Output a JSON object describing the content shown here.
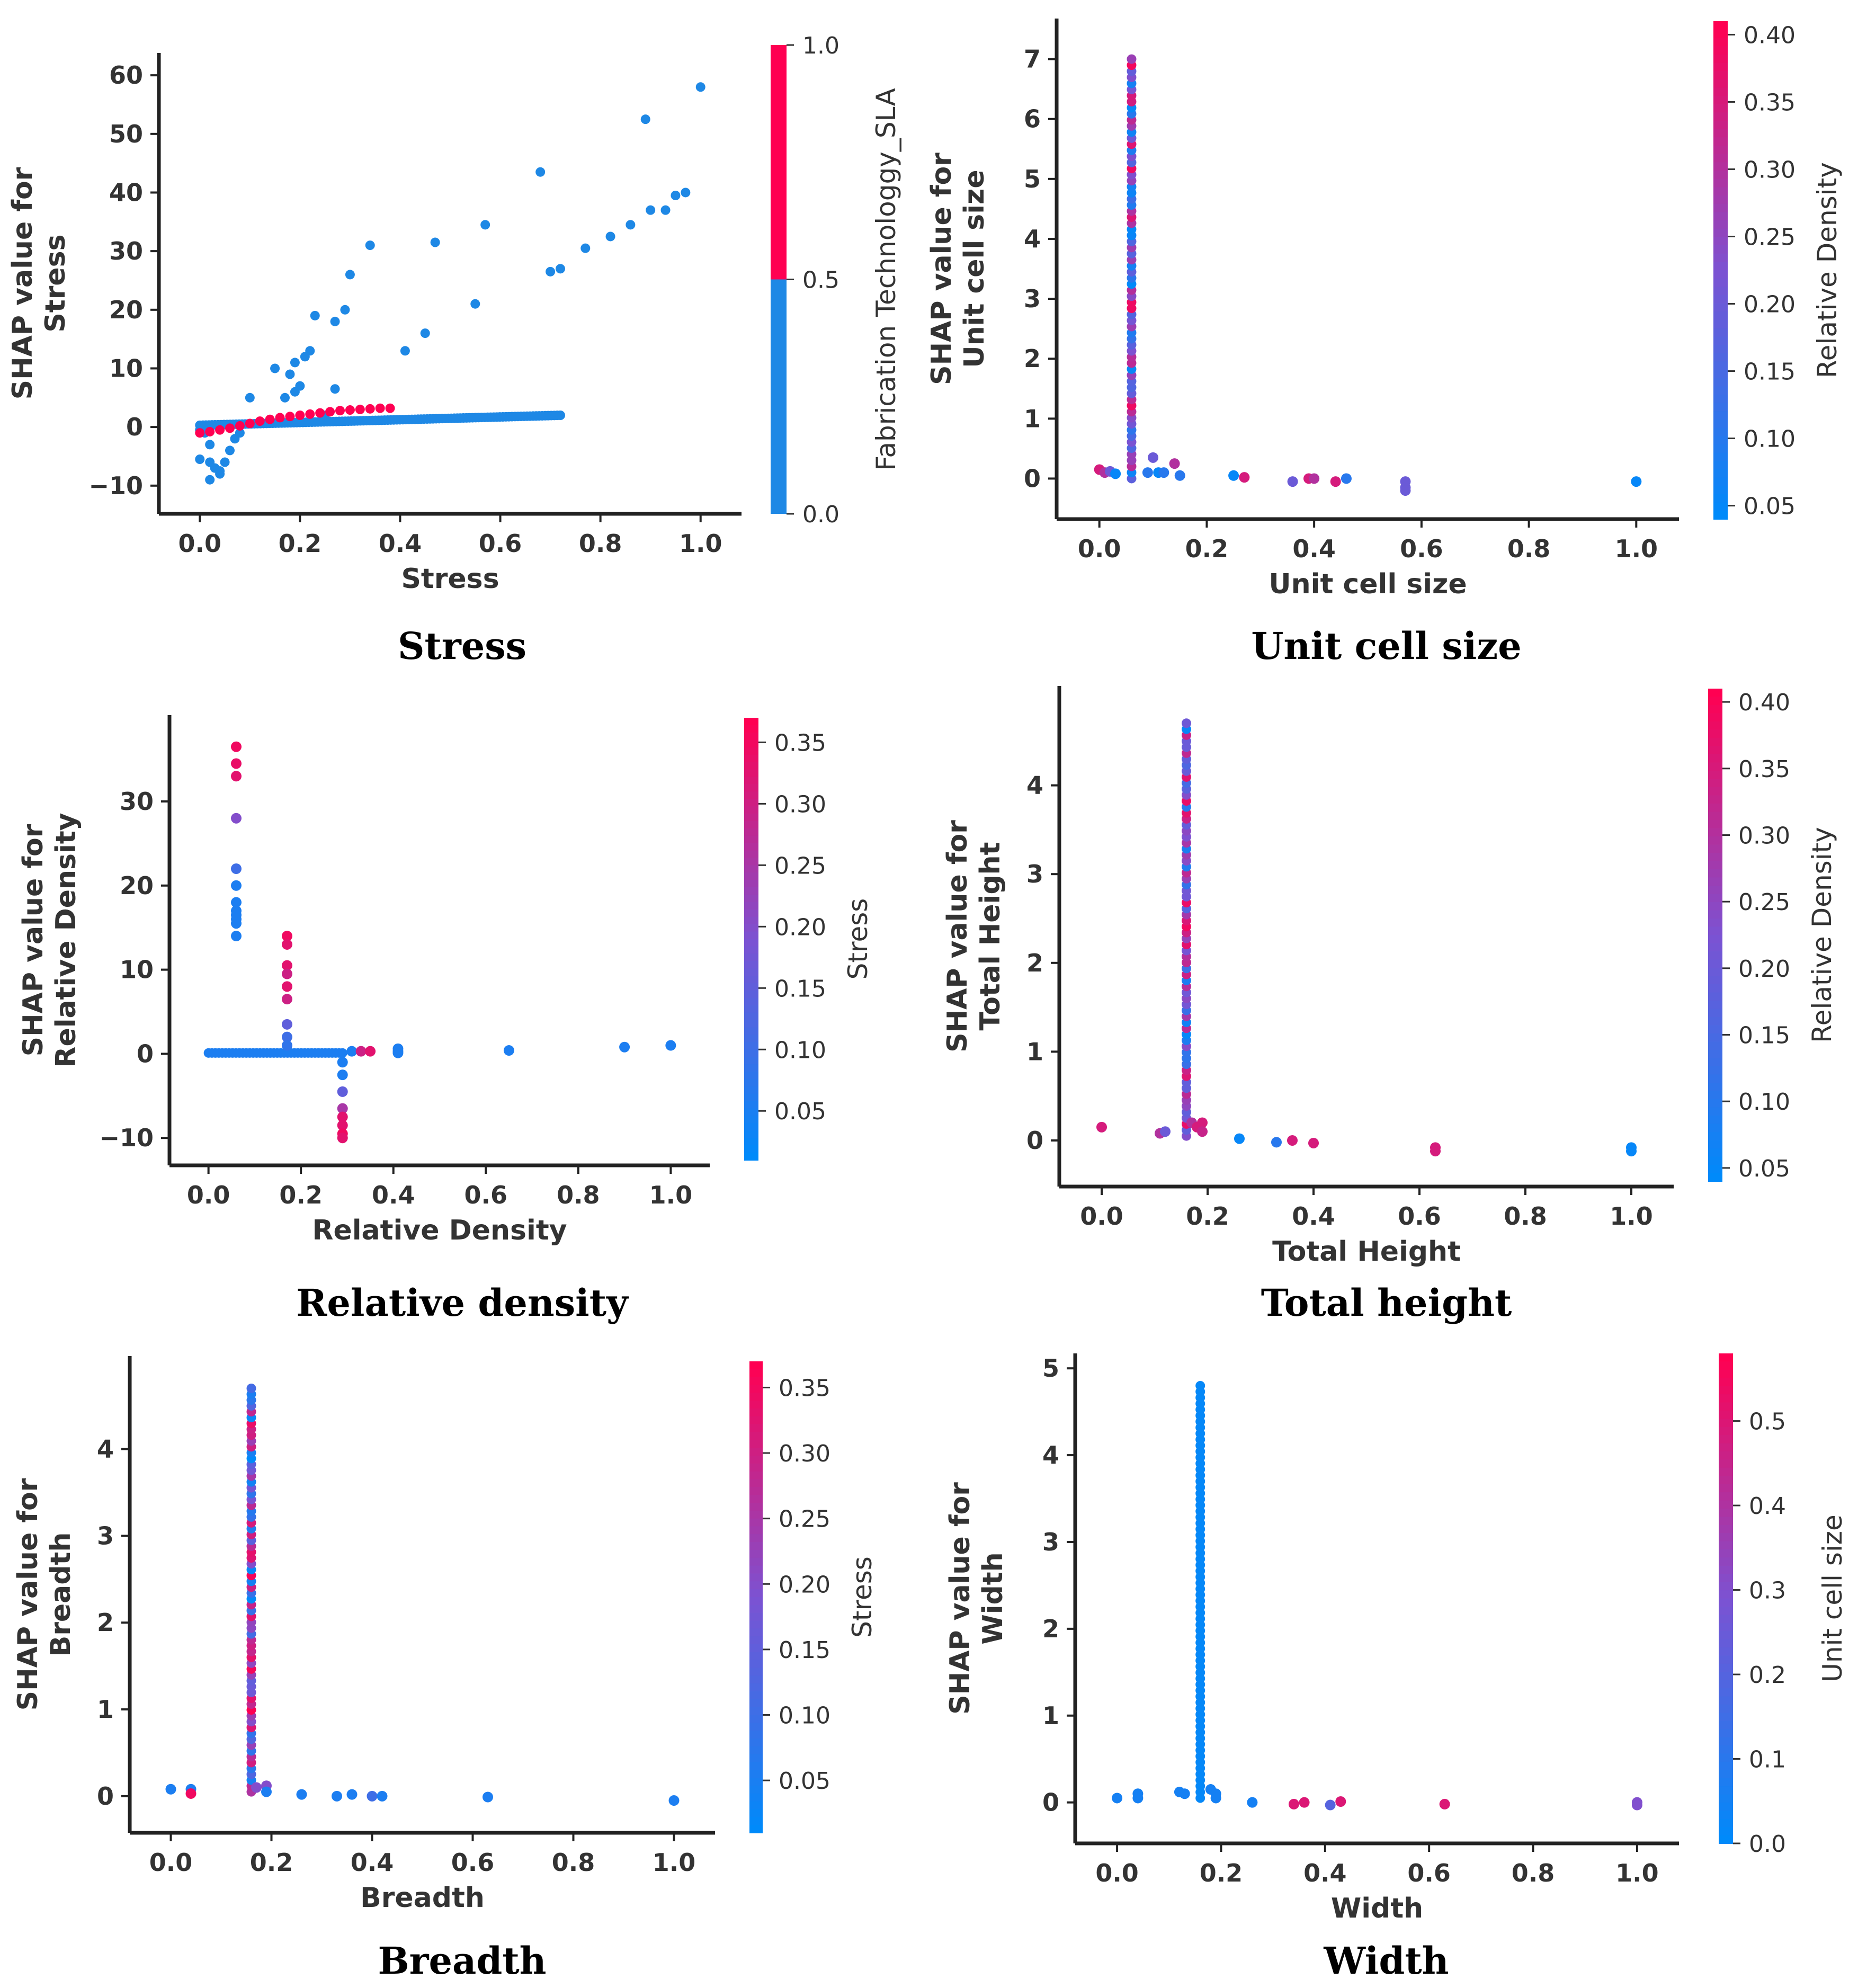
{
  "chart_data": [
    {
      "type": "scatter",
      "caption": "Stress",
      "xlabel": "Stress",
      "ylabel_line1": "SHAP value for",
      "ylabel_line2": "Stress",
      "xlim": [
        -0.05,
        1.05
      ],
      "ylim": [
        -13,
        62
      ],
      "xticks": [
        0.0,
        0.2,
        0.4,
        0.6,
        0.8,
        1.0
      ],
      "xtick_labels": [
        "0.0",
        "0.2",
        "0.4",
        "0.6",
        "0.8",
        "1.0"
      ],
      "yticks": [
        -10,
        0,
        10,
        20,
        30,
        40,
        50,
        60
      ],
      "ytick_labels": [
        "−10",
        "0",
        "10",
        "20",
        "30",
        "40",
        "50",
        "60"
      ],
      "colorbar": {
        "label": "Fabrication Technologgy_SLA",
        "range": [
          0,
          1
        ],
        "type": "binary",
        "ticks": [
          0.0,
          0.5,
          1.0
        ],
        "tick_labels": [
          "0.0",
          "0.5",
          "1.0"
        ]
      },
      "series": [
        {
          "name": "Fabrication Technologgy_SLA = 0",
          "color": "#1e88e5",
          "points": [
            [
              0.0,
              -0.5
            ],
            [
              0.01,
              -1
            ],
            [
              0.02,
              -3
            ],
            [
              0.0,
              -5.5
            ],
            [
              0.02,
              -6
            ],
            [
              0.03,
              -7
            ],
            [
              0.04,
              -8
            ],
            [
              0.05,
              -6
            ],
            [
              0.04,
              -7.5
            ],
            [
              0.02,
              -9
            ],
            [
              0.06,
              -4
            ],
            [
              0.07,
              -2
            ],
            [
              0.08,
              -1
            ],
            [
              0.1,
              5
            ],
            [
              0.15,
              10
            ],
            [
              0.18,
              9
            ],
            [
              0.19,
              11
            ],
            [
              0.21,
              12
            ],
            [
              0.17,
              5
            ],
            [
              0.19,
              6
            ],
            [
              0.2,
              7
            ],
            [
              0.22,
              13
            ],
            [
              0.23,
              19
            ],
            [
              0.27,
              18
            ],
            [
              0.27,
              6.5
            ],
            [
              0.29,
              20
            ],
            [
              0.25,
              2
            ],
            [
              0.3,
              26
            ],
            [
              0.34,
              31
            ],
            [
              0.41,
              13
            ],
            [
              0.45,
              16
            ],
            [
              0.47,
              31.5
            ],
            [
              0.55,
              21
            ],
            [
              0.57,
              34.5
            ],
            [
              0.68,
              43.5
            ],
            [
              0.7,
              26.5
            ],
            [
              0.72,
              27
            ],
            [
              0.77,
              30.5
            ],
            [
              0.82,
              32.5
            ],
            [
              0.86,
              34.5
            ],
            [
              0.89,
              52.5
            ],
            [
              0.9,
              37
            ],
            [
              0.93,
              37
            ],
            [
              0.95,
              39.5
            ],
            [
              0.97,
              40
            ],
            [
              1.0,
              58
            ]
          ]
        },
        {
          "name": "Fabrication Technologgy_SLA = 1",
          "color": "#ff0052",
          "points": [
            [
              0.0,
              -1
            ],
            [
              0.02,
              -0.8
            ],
            [
              0.04,
              -0.5
            ],
            [
              0.06,
              -0.2
            ],
            [
              0.08,
              0.2
            ],
            [
              0.1,
              0.6
            ],
            [
              0.12,
              1.0
            ],
            [
              0.14,
              1.3
            ],
            [
              0.16,
              1.6
            ],
            [
              0.18,
              1.8
            ],
            [
              0.2,
              2.0
            ],
            [
              0.22,
              2.2
            ],
            [
              0.24,
              2.4
            ],
            [
              0.26,
              2.6
            ],
            [
              0.28,
              2.8
            ],
            [
              0.3,
              2.9
            ],
            [
              0.32,
              3.0
            ],
            [
              0.34,
              3.1
            ],
            [
              0.36,
              3.2
            ],
            [
              0.38,
              3.2
            ]
          ]
        }
      ],
      "blue_band": {
        "x_range": [
          0.0,
          0.72
        ],
        "y_start": 0.3,
        "y_end": 2.0
      }
    },
    {
      "type": "scatter",
      "caption": "Unit cell size",
      "xlabel": "Unit cell size",
      "ylabel_line1": "SHAP value for",
      "ylabel_line2": "Unit cell size",
      "xlim": [
        -0.05,
        1.05
      ],
      "ylim": [
        -0.5,
        7.5
      ],
      "xticks": [
        0.0,
        0.2,
        0.4,
        0.6,
        0.8,
        1.0
      ],
      "xtick_labels": [
        "0.0",
        "0.2",
        "0.4",
        "0.6",
        "0.8",
        "1.0"
      ],
      "yticks": [
        0,
        1,
        2,
        3,
        4,
        5,
        6,
        7
      ],
      "ytick_labels": [
        "0",
        "1",
        "2",
        "3",
        "4",
        "5",
        "6",
        "7"
      ],
      "colorbar": {
        "label": "Relative Density",
        "range": [
          0.04,
          0.41
        ],
        "type": "gradient",
        "ticks": [
          0.05,
          0.1,
          0.15,
          0.2,
          0.25,
          0.3,
          0.35,
          0.4
        ],
        "tick_labels": [
          "0.05",
          "0.10",
          "0.15",
          "0.20",
          "0.25",
          "0.30",
          "0.35",
          "0.40"
        ]
      },
      "column": {
        "x": 0.06,
        "y_min": 0.0,
        "y_max": 7.0,
        "color_seed": 3
      },
      "points": [
        [
          0.0,
          0.15,
          0.35
        ],
        [
          0.01,
          0.1,
          0.3
        ],
        [
          0.02,
          0.12,
          0.2
        ],
        [
          0.03,
          0.08,
          0.05
        ],
        [
          0.09,
          0.1,
          0.1
        ],
        [
          0.1,
          0.35,
          0.2
        ],
        [
          0.11,
          0.1,
          0.05
        ],
        [
          0.12,
          0.1,
          0.1
        ],
        [
          0.14,
          0.25,
          0.3
        ],
        [
          0.15,
          0.05,
          0.1
        ],
        [
          0.25,
          0.05,
          0.05
        ],
        [
          0.27,
          0.02,
          0.35
        ],
        [
          0.36,
          -0.05,
          0.2
        ],
        [
          0.39,
          0.0,
          0.35
        ],
        [
          0.4,
          0.0,
          0.3
        ],
        [
          0.44,
          -0.05,
          0.35
        ],
        [
          0.46,
          0.0,
          0.1
        ],
        [
          0.57,
          -0.05,
          0.2
        ],
        [
          0.57,
          -0.15,
          0.2
        ],
        [
          0.57,
          -0.2,
          0.2
        ],
        [
          1.0,
          -0.05,
          0.05
        ]
      ]
    },
    {
      "type": "scatter",
      "caption": "Relative density",
      "xlabel": "Relative Density",
      "ylabel_line1": "SHAP value for",
      "ylabel_line2": "Relative Density",
      "xlim": [
        -0.05,
        1.05
      ],
      "ylim": [
        -12,
        39
      ],
      "xticks": [
        0.0,
        0.2,
        0.4,
        0.6,
        0.8,
        1.0
      ],
      "xtick_labels": [
        "0.0",
        "0.2",
        "0.4",
        "0.6",
        "0.8",
        "1.0"
      ],
      "yticks": [
        -10,
        0,
        10,
        20,
        30
      ],
      "ytick_labels": [
        "−10",
        "0",
        "10",
        "20",
        "30"
      ],
      "colorbar": {
        "label": "Stress",
        "range": [
          0.01,
          0.37
        ],
        "type": "gradient",
        "ticks": [
          0.05,
          0.1,
          0.15,
          0.2,
          0.25,
          0.3,
          0.35
        ],
        "tick_labels": [
          "0.05",
          "0.10",
          "0.15",
          "0.20",
          "0.25",
          "0.30",
          "0.35"
        ]
      },
      "points": [
        [
          0.06,
          36.5,
          0.35
        ],
        [
          0.06,
          34.5,
          0.34
        ],
        [
          0.06,
          33,
          0.33
        ],
        [
          0.06,
          28,
          0.2
        ],
        [
          0.06,
          22,
          0.1
        ],
        [
          0.06,
          20,
          0.05
        ],
        [
          0.06,
          18,
          0.05
        ],
        [
          0.06,
          17,
          0.05
        ],
        [
          0.06,
          16.5,
          0.05
        ],
        [
          0.06,
          16,
          0.05
        ],
        [
          0.06,
          15.5,
          0.05
        ],
        [
          0.06,
          14,
          0.05
        ],
        [
          0.17,
          14,
          0.35
        ],
        [
          0.17,
          13,
          0.33
        ],
        [
          0.17,
          10.5,
          0.33
        ],
        [
          0.17,
          9.5,
          0.3
        ],
        [
          0.17,
          8,
          0.33
        ],
        [
          0.17,
          6.5,
          0.3
        ],
        [
          0.17,
          3.5,
          0.15
        ],
        [
          0.17,
          2,
          0.1
        ],
        [
          0.17,
          1,
          0.08
        ],
        [
          0.29,
          -1,
          0.05
        ],
        [
          0.29,
          -2.5,
          0.05
        ],
        [
          0.29,
          -4.5,
          0.15
        ],
        [
          0.29,
          -6.5,
          0.25
        ],
        [
          0.29,
          -7.5,
          0.33
        ],
        [
          0.29,
          -8.5,
          0.33
        ],
        [
          0.29,
          -9.5,
          0.35
        ],
        [
          0.29,
          -10,
          0.33
        ],
        [
          0.31,
          0.3,
          0.05
        ],
        [
          0.33,
          0.3,
          0.3
        ],
        [
          0.35,
          0.3,
          0.33
        ],
        [
          0.41,
          0.3,
          0.05
        ],
        [
          0.41,
          0.6,
          0.05
        ],
        [
          0.41,
          0.1,
          0.05
        ],
        [
          0.65,
          0.4,
          0.05
        ],
        [
          0.9,
          0.8,
          0.05
        ],
        [
          1.0,
          1.0,
          0.05
        ]
      ],
      "row": {
        "x_start": 0.0,
        "x_end": 0.29,
        "y": 0.1,
        "color_value": 0.05
      }
    },
    {
      "type": "scatter",
      "caption": "Total height",
      "xlabel": "Total Height",
      "ylabel_line1": "SHAP value for",
      "ylabel_line2": "Total Height",
      "xlim": [
        -0.05,
        1.05
      ],
      "ylim": [
        -0.4,
        5.0
      ],
      "xticks": [
        0.0,
        0.2,
        0.4,
        0.6,
        0.8,
        1.0
      ],
      "xtick_labels": [
        "0.0",
        "0.2",
        "0.4",
        "0.6",
        "0.8",
        "1.0"
      ],
      "yticks": [
        0,
        1,
        2,
        3,
        4
      ],
      "ytick_labels": [
        "0",
        "1",
        "2",
        "3",
        "4"
      ],
      "colorbar": {
        "label": "Relative Density",
        "range": [
          0.04,
          0.41
        ],
        "type": "gradient",
        "ticks": [
          0.05,
          0.1,
          0.15,
          0.2,
          0.25,
          0.3,
          0.35,
          0.4
        ],
        "tick_labels": [
          "0.05",
          "0.10",
          "0.15",
          "0.20",
          "0.25",
          "0.30",
          "0.35",
          "0.40"
        ]
      },
      "column": {
        "x": 0.16,
        "y_min": 0.05,
        "y_max": 4.7,
        "color_seed": 7
      },
      "points": [
        [
          0.0,
          0.15,
          0.35
        ],
        [
          0.11,
          0.08,
          0.3
        ],
        [
          0.12,
          0.1,
          0.2
        ],
        [
          0.17,
          0.2,
          0.3
        ],
        [
          0.18,
          0.15,
          0.35
        ],
        [
          0.19,
          0.2,
          0.35
        ],
        [
          0.19,
          0.1,
          0.33
        ],
        [
          0.26,
          0.02,
          0.05
        ],
        [
          0.33,
          -0.02,
          0.1
        ],
        [
          0.36,
          0.0,
          0.35
        ],
        [
          0.4,
          -0.03,
          0.35
        ],
        [
          0.63,
          -0.08,
          0.35
        ],
        [
          0.63,
          -0.12,
          0.35
        ],
        [
          1.0,
          -0.08,
          0.05
        ],
        [
          1.0,
          -0.12,
          0.05
        ]
      ]
    },
    {
      "type": "scatter",
      "caption": "Breadth",
      "xlabel": "Breadth",
      "ylabel_line1": "SHAP value for",
      "ylabel_line2": "Breadth",
      "xlim": [
        -0.05,
        1.05
      ],
      "ylim": [
        -0.3,
        4.95
      ],
      "xticks": [
        0.0,
        0.2,
        0.4,
        0.6,
        0.8,
        1.0
      ],
      "xtick_labels": [
        "0.0",
        "0.2",
        "0.4",
        "0.6",
        "0.8",
        "1.0"
      ],
      "yticks": [
        0,
        1,
        2,
        3,
        4
      ],
      "ytick_labels": [
        "0",
        "1",
        "2",
        "3",
        "4"
      ],
      "colorbar": {
        "label": "Stress",
        "range": [
          0.01,
          0.37
        ],
        "type": "gradient",
        "ticks": [
          0.05,
          0.1,
          0.15,
          0.2,
          0.25,
          0.3,
          0.35
        ],
        "tick_labels": [
          "0.05",
          "0.10",
          "0.15",
          "0.20",
          "0.25",
          "0.30",
          "0.35"
        ]
      },
      "column": {
        "x": 0.16,
        "y_min": 0.05,
        "y_max": 4.7,
        "color_seed": 11
      },
      "points": [
        [
          0.0,
          0.08,
          0.05
        ],
        [
          0.04,
          0.08,
          0.05
        ],
        [
          0.04,
          0.03,
          0.35
        ],
        [
          0.17,
          0.1,
          0.2
        ],
        [
          0.19,
          0.12,
          0.2
        ],
        [
          0.19,
          0.05,
          0.05
        ],
        [
          0.26,
          0.02,
          0.05
        ],
        [
          0.33,
          0.0,
          0.05
        ],
        [
          0.36,
          0.02,
          0.05
        ],
        [
          0.4,
          0.0,
          0.1
        ],
        [
          0.42,
          0.0,
          0.05
        ],
        [
          0.63,
          -0.01,
          0.05
        ],
        [
          1.0,
          -0.05,
          0.05
        ]
      ]
    },
    {
      "type": "scatter",
      "caption": "Width",
      "xlabel": "Width",
      "ylabel_line1": "SHAP value for",
      "ylabel_line2": "Width",
      "xlim": [
        -0.05,
        1.05
      ],
      "ylim": [
        -0.35,
        5.05
      ],
      "xticks": [
        0.0,
        0.2,
        0.4,
        0.6,
        0.8,
        1.0
      ],
      "xtick_labels": [
        "0.0",
        "0.2",
        "0.4",
        "0.6",
        "0.8",
        "1.0"
      ],
      "yticks": [
        0,
        1,
        2,
        3,
        4,
        5
      ],
      "ytick_labels": [
        "0",
        "1",
        "2",
        "3",
        "4",
        "5"
      ],
      "colorbar": {
        "label": "Unit cell size",
        "range": [
          0.0,
          0.58
        ],
        "type": "gradient",
        "ticks": [
          0.0,
          0.1,
          0.2,
          0.3,
          0.4,
          0.5
        ],
        "tick_labels": [
          "0.0",
          "0.1",
          "0.2",
          "0.3",
          "0.4",
          "0.5"
        ]
      },
      "column": {
        "x": 0.16,
        "y_min": 0.05,
        "y_max": 4.8,
        "color_seed": 0
      },
      "points": [
        [
          0.0,
          0.05,
          0.05
        ],
        [
          0.04,
          0.1,
          0.05
        ],
        [
          0.04,
          0.05,
          0.05
        ],
        [
          0.12,
          0.12,
          0.05
        ],
        [
          0.13,
          0.1,
          0.05
        ],
        [
          0.18,
          0.15,
          0.05
        ],
        [
          0.19,
          0.1,
          0.05
        ],
        [
          0.19,
          0.05,
          0.05
        ],
        [
          0.26,
          0.0,
          0.05
        ],
        [
          0.34,
          -0.02,
          0.5
        ],
        [
          0.36,
          0.0,
          0.5
        ],
        [
          0.41,
          -0.03,
          0.2
        ],
        [
          0.43,
          0.01,
          0.5
        ],
        [
          0.63,
          -0.02,
          0.5
        ],
        [
          1.0,
          0.0,
          0.3
        ],
        [
          1.0,
          -0.03,
          0.3
        ]
      ]
    }
  ]
}
